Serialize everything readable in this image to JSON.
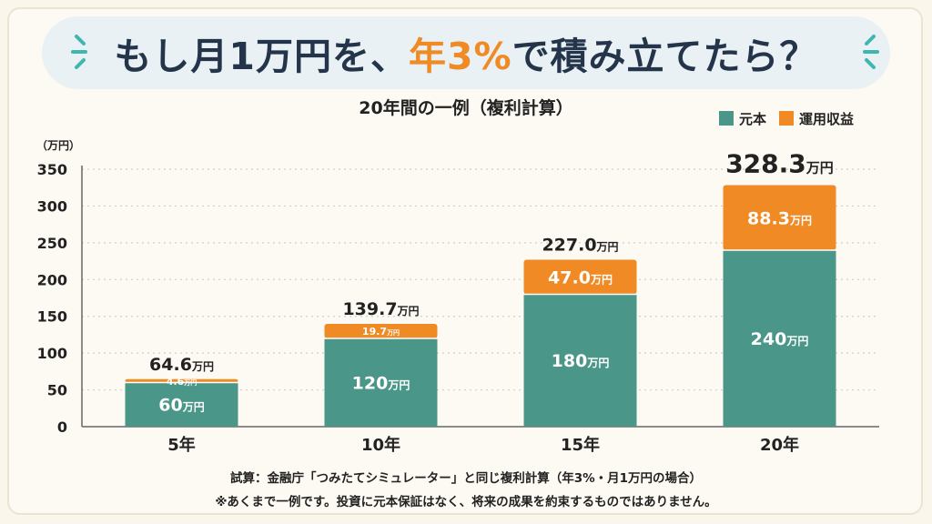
{
  "header": {
    "title_part1": "もし月1万円を、",
    "title_highlight": "年3%",
    "title_part2": "で積み立てたら？"
  },
  "chart_data": {
    "type": "bar",
    "stacked": true,
    "title": "20年間の一例（複利計算）",
    "unit_label": "（万円）",
    "categories": [
      "5年",
      "10年",
      "15年",
      "20年"
    ],
    "series": [
      {
        "name": "元本",
        "color": "#4a9688",
        "values": [
          60,
          120,
          180,
          240
        ],
        "labels": [
          "60",
          "120",
          "180",
          "240"
        ]
      },
      {
        "name": "運用収益",
        "color": "#f08a24",
        "values": [
          4.6,
          19.7,
          47.0,
          88.3
        ],
        "labels": [
          "4.6",
          "19.7",
          "47.0",
          "88.3"
        ]
      }
    ],
    "totals": [
      "64.6",
      "139.7",
      "227.0",
      "328.3"
    ],
    "value_suffix": "万円",
    "ylim": [
      0,
      350
    ],
    "yticks": [
      0,
      50,
      100,
      150,
      200,
      250,
      300,
      350
    ],
    "grid": true,
    "legend_position": "top-right"
  },
  "footer": {
    "line1": "試算：金融庁「つみたてシミュレーター」と同じ複利計算（年3%・月1万円の場合）",
    "line2": "※あくまで一例です。投資に元本保証はなく、将来の成果を約束するものではありません。"
  }
}
